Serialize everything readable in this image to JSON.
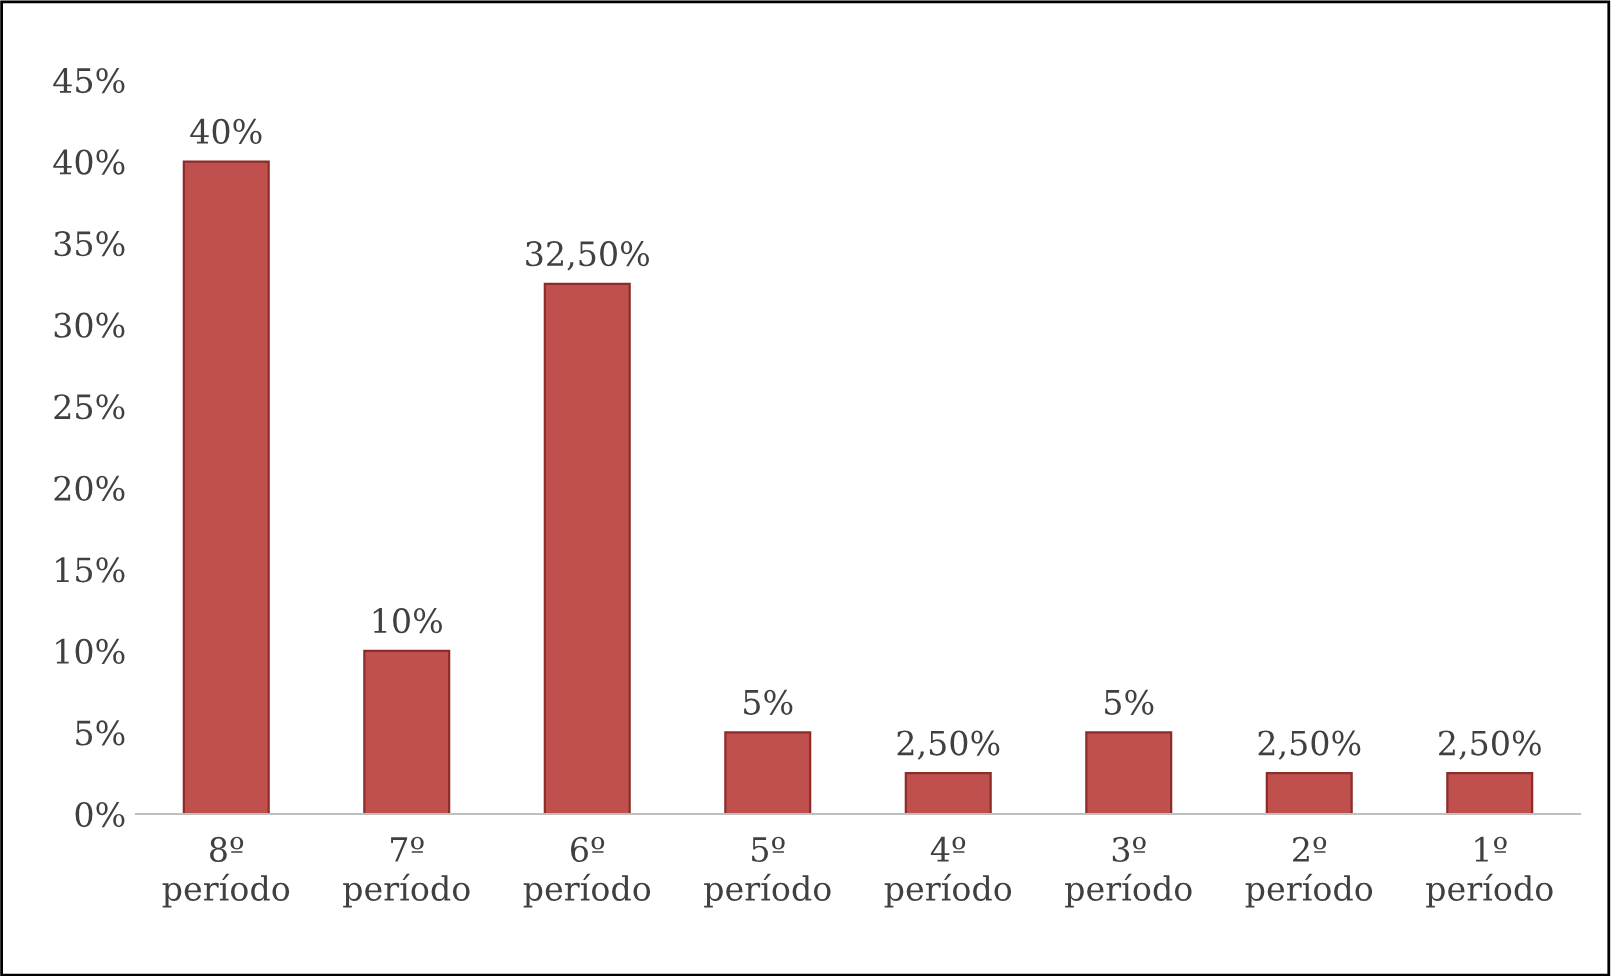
{
  "chart_data": {
    "type": "bar",
    "categories": [
      "8º\nperíodo",
      "7º\nperíodo",
      "6º\nperíodo",
      "5º\nperíodo",
      "4º\nperíodo",
      "3º\nperíodo",
      "2º\nperíodo",
      "1º\nperíodo"
    ],
    "values": [
      40,
      10,
      32.5,
      5,
      2.5,
      5,
      2.5,
      2.5
    ],
    "value_labels": [
      "40%",
      "10%",
      "32,50%",
      "5%",
      "2,50%",
      "5%",
      "2,50%",
      "2,50%"
    ],
    "color": "#c0504d",
    "ylim": [
      0,
      45
    ],
    "yticks": [
      {
        "value": 0,
        "label": "0%"
      },
      {
        "value": 5,
        "label": "5%"
      },
      {
        "value": 10,
        "label": "10%"
      },
      {
        "value": 15,
        "label": "15%"
      },
      {
        "value": 20,
        "label": "20%"
      },
      {
        "value": 25,
        "label": "25%"
      },
      {
        "value": 30,
        "label": "30%"
      },
      {
        "value": 35,
        "label": "35%"
      },
      {
        "value": 40,
        "label": "40%"
      },
      {
        "value": 45,
        "label": "45%"
      }
    ],
    "grid": false,
    "legend": false
  }
}
